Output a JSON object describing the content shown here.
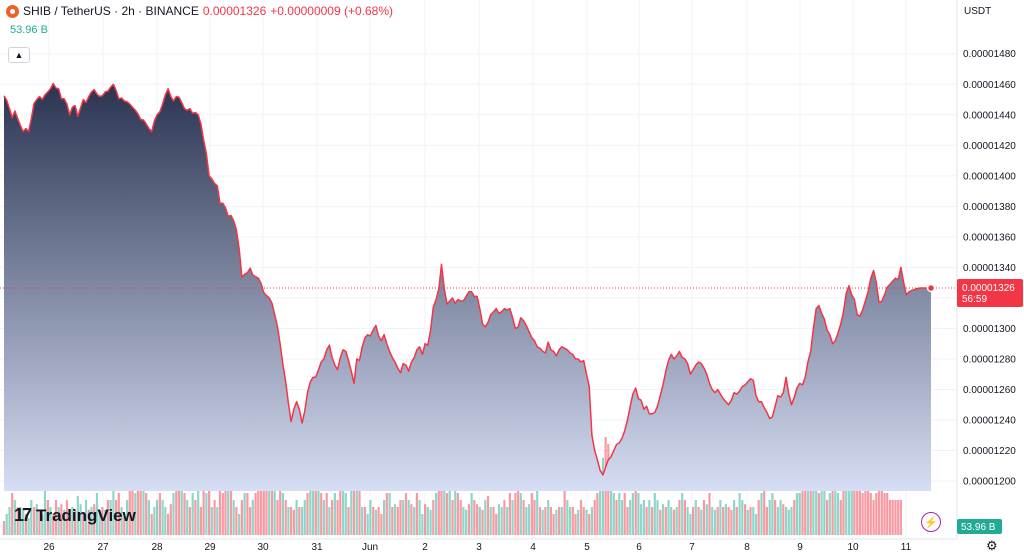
{
  "header": {
    "icon": "shib-coin-icon",
    "symbol": "SHIB / TetherUS · 2h · BINANCE",
    "price": "0.00001326",
    "change": "+0.00000009 (+0.68%)",
    "volume": "53.96 B"
  },
  "axis": {
    "currency": "USDT",
    "current_price": "0.00001326",
    "countdown": "56:59",
    "volume_badge": "53.96 B"
  },
  "logo_text": "TradingView",
  "colors": {
    "line": "#f23645",
    "area_top": "#2a3350",
    "area_bottom": "#d6def5",
    "vol_up": "#22ab94",
    "vol_down": "#f23645",
    "price_label": "#f23645",
    "volume_label": "#22ab94"
  },
  "chart_data": {
    "type": "area",
    "series": [
      {
        "values": [
          1.4525,
          1.4495,
          1.444,
          1.438,
          1.4425,
          1.4375,
          1.433,
          1.429,
          1.431,
          1.429,
          1.4375,
          1.4475,
          1.45,
          1.452,
          1.45,
          1.453,
          1.455,
          1.457,
          1.4605,
          1.4575,
          1.457,
          1.4505,
          1.4505,
          1.447,
          1.44,
          1.445,
          1.446,
          1.439,
          1.4445,
          1.45,
          1.448,
          1.452,
          1.455,
          1.4565,
          1.4535,
          1.452,
          1.4525,
          1.455,
          1.4555,
          1.458,
          1.46,
          1.456,
          1.4505,
          1.451,
          1.449,
          1.4485,
          1.447,
          1.445,
          1.443,
          1.4405,
          1.437,
          1.4365,
          1.434,
          1.431,
          1.429,
          1.436,
          1.44,
          1.442,
          1.447,
          1.453,
          1.457,
          1.452,
          1.449,
          1.452,
          1.4515,
          1.448,
          1.444,
          1.443,
          1.444,
          1.441,
          1.4415,
          1.44,
          1.434,
          1.4235,
          1.4145,
          1.4,
          1.398,
          1.395,
          1.3935,
          1.382,
          1.382,
          1.379,
          1.3735,
          1.374,
          1.3705,
          1.3645,
          1.352,
          1.3335,
          1.3355,
          1.3365,
          1.3395,
          1.335,
          1.334,
          1.333,
          1.3295,
          1.3235,
          1.3215,
          1.32,
          1.3165,
          1.309,
          1.301,
          1.2895,
          1.2765,
          1.265,
          1.251,
          1.239,
          1.247,
          1.252,
          1.247,
          1.238,
          1.246,
          1.258,
          1.265,
          1.268,
          1.268,
          1.273,
          1.278,
          1.28,
          1.286,
          1.289,
          1.281,
          1.276,
          1.273,
          1.281,
          1.286,
          1.285,
          1.279,
          1.272,
          1.264,
          1.28,
          1.279,
          1.288,
          1.294,
          1.296,
          1.295,
          1.299,
          1.302,
          1.295,
          1.292,
          1.296,
          1.29,
          1.285,
          1.281,
          1.278,
          1.274,
          1.271,
          1.277,
          1.276,
          1.272,
          1.278,
          1.281,
          1.286,
          1.288,
          1.283,
          1.29,
          1.289,
          1.299,
          1.314,
          1.319,
          1.326,
          1.342,
          1.326,
          1.316,
          1.318,
          1.32,
          1.3165,
          1.319,
          1.318,
          1.318,
          1.321,
          1.324,
          1.324,
          1.321,
          1.321,
          1.313,
          1.303,
          1.301,
          1.304,
          1.309,
          1.311,
          1.313,
          1.31,
          1.311,
          1.313,
          1.312,
          1.313,
          1.307,
          1.3,
          1.301,
          1.307,
          1.305,
          1.302,
          1.298,
          1.294,
          1.292,
          1.288,
          1.287,
          1.285,
          1.284,
          1.291,
          1.286,
          1.285,
          1.282,
          1.286,
          1.288,
          1.287,
          1.286,
          1.284,
          1.283,
          1.28,
          1.28,
          1.278,
          1.279,
          1.27,
          1.262,
          1.23,
          1.22,
          1.214,
          1.207,
          1.204,
          1.209,
          1.214,
          1.216,
          1.22,
          1.224,
          1.225,
          1.228,
          1.233,
          1.24,
          1.249,
          1.257,
          1.261,
          1.254,
          1.253,
          1.247,
          1.249,
          1.244,
          1.244,
          1.245,
          1.249,
          1.256,
          1.263,
          1.272,
          1.279,
          1.283,
          1.28,
          1.282,
          1.285,
          1.281,
          1.28,
          1.277,
          1.27,
          1.273,
          1.276,
          1.278,
          1.277,
          1.274,
          1.27,
          1.264,
          1.26,
          1.258,
          1.26,
          1.257,
          1.254,
          1.252,
          1.25,
          1.253,
          1.258,
          1.257,
          1.259,
          1.262,
          1.263,
          1.265,
          1.267,
          1.266,
          1.256,
          1.252,
          1.252,
          1.248,
          1.245,
          1.241,
          1.242,
          1.249,
          1.256,
          1.255,
          1.258,
          1.268,
          1.257,
          1.25,
          1.255,
          1.261,
          1.264,
          1.263,
          1.268,
          1.278,
          1.285,
          1.3,
          1.313,
          1.315,
          1.31,
          1.306,
          1.299,
          1.296,
          1.29,
          1.292,
          1.297,
          1.303,
          1.311,
          1.323,
          1.328,
          1.322,
          1.319,
          1.309,
          1.308,
          1.312,
          1.318,
          1.324,
          1.333,
          1.338,
          1.33,
          1.317,
          1.318,
          1.322,
          1.327,
          1.329,
          1.331,
          1.333,
          1.332,
          1.34,
          1.33,
          1.322,
          1.324,
          1.325,
          1.3255,
          1.3262,
          1.3265,
          1.3265,
          1.3265,
          1.3265,
          1.3265
        ]
      }
    ],
    "x_labels": [
      "26",
      "27",
      "28",
      "29",
      "30",
      "31",
      "Jun",
      "2",
      "3",
      "4",
      "5",
      "6",
      "7",
      "8",
      "9",
      "10",
      "11"
    ],
    "y_ticks": [
      "0.00001200",
      "0.00001220",
      "0.00001240",
      "0.00001260",
      "0.00001280",
      "0.00001300",
      "0.00001320",
      "0.00001340",
      "0.00001360",
      "0.00001380",
      "0.00001400",
      "0.00001420",
      "0.00001440",
      "0.00001460",
      "0.00001480"
    ],
    "ylim": [
      1.1935,
      1.489
    ],
    "volume": [
      0.1,
      0.15,
      0.2,
      0.3,
      0.25,
      0.2,
      0.2,
      0.18,
      0.15,
      0.12,
      0.25,
      0.2,
      0.22,
      0.18,
      0.15,
      0.35,
      0.25,
      0.2,
      0.15,
      0.25,
      0.2,
      0.22,
      0.18,
      0.25,
      0.15,
      0.2,
      0.18,
      0.28,
      0.22,
      0.15,
      0.25,
      0.18,
      0.2,
      0.22,
      0.3,
      0.15,
      0.2,
      0.18,
      0.25,
      0.25,
      0.35,
      0.25,
      0.3,
      0.2,
      0.15,
      0.25,
      0.4,
      0.35,
      0.3,
      0.5,
      0.6,
      0.45,
      0.3,
      0.25,
      0.15,
      0.2,
      0.25,
      0.3,
      0.25,
      0.2,
      0.15,
      0.22,
      0.3,
      0.55,
      0.7,
      0.4,
      0.3,
      0.25,
      0.2,
      0.3,
      0.25,
      0.35,
      0.2,
      0.4,
      0.3,
      0.35,
      0.2,
      0.25,
      0.2,
      0.35,
      0.3,
      0.5,
      0.4,
      0.9,
      0.25,
      0.2,
      0.15,
      0.25,
      0.3,
      0.3,
      0.2,
      0.25,
      0.3,
      0.5,
      0.7,
      1.0,
      0.6,
      0.5,
      0.4,
      0.35,
      0.25,
      0.35,
      0.3,
      0.25,
      0.2,
      0.2,
      0.18,
      0.25,
      0.2,
      0.2,
      0.25,
      0.3,
      0.45,
      0.4,
      0.35,
      0.5,
      0.3,
      0.25,
      0.3,
      0.2,
      0.25,
      0.3,
      0.25,
      0.4,
      0.5,
      0.3,
      0.2,
      0.45,
      0.35,
      0.5,
      0.8,
      0.2,
      0.2,
      0.15,
      0.25,
      0.2,
      0.18,
      0.2,
      0.15,
      0.25,
      0.3,
      0.3,
      0.2,
      0.22,
      0.2,
      0.25,
      0.25,
      0.3,
      0.25,
      0.22,
      0.2,
      0.3,
      0.25,
      0.15,
      0.22,
      0.2,
      0.18,
      0.25,
      0.3,
      0.4,
      0.35,
      0.4,
      0.3,
      0.35,
      0.25,
      0.4,
      0.3,
      0.25,
      0.2,
      0.18,
      0.22,
      0.3,
      0.25,
      0.22,
      0.2,
      0.18,
      0.25,
      0.28,
      0.2,
      0.2,
      0.15,
      0.22,
      0.2,
      0.25,
      0.2,
      0.3,
      0.25,
      0.3,
      0.35,
      0.3,
      0.25,
      0.2,
      0.22,
      0.3,
      0.25,
      0.35,
      0.2,
      0.18,
      0.2,
      0.25,
      0.2,
      0.15,
      0.18,
      0.2,
      0.2,
      0.35,
      0.25,
      0.2,
      0.2,
      0.15,
      0.18,
      0.25,
      0.2,
      0.18,
      0.15,
      0.2,
      0.25,
      0.3,
      0.4,
      0.55,
      0.7,
      0.65,
      0.4,
      0.3,
      0.25,
      0.3,
      0.25,
      0.3,
      0.2,
      0.25,
      0.3,
      0.35,
      0.3,
      0.22,
      0.25,
      0.2,
      0.25,
      0.2,
      0.3,
      0.25,
      0.18,
      0.22,
      0.2,
      0.25,
      0.2,
      0.18,
      0.2,
      0.25,
      0.3,
      0.25,
      0.2,
      0.15,
      0.2,
      0.25,
      0.2,
      0.18,
      0.25,
      0.22,
      0.3,
      0.2,
      0.18,
      0.2,
      0.25,
      0.2,
      0.22,
      0.2,
      0.18,
      0.25,
      0.2,
      0.3,
      0.25,
      0.22,
      0.18,
      0.2,
      0.2,
      0.15,
      0.25,
      0.3,
      0.35,
      0.2,
      0.25,
      0.3,
      0.25,
      0.2,
      0.25,
      0.22,
      0.2,
      0.18,
      0.2,
      0.25,
      0.3,
      0.3,
      0.45,
      0.4,
      0.55,
      0.5,
      0.4,
      0.35,
      0.3,
      0.35,
      0.4,
      0.25,
      0.3,
      0.35,
      0.4,
      0.3,
      0.25,
      0.45,
      0.35,
      0.5,
      0.7,
      0.6,
      0.4,
      0.35,
      0.3,
      0.4,
      0.35,
      0.3,
      0.25,
      0.3,
      0.45,
      0.35,
      0.3,
      0.3,
      0.25,
      0.25,
      0.25,
      0.25,
      0.25
    ],
    "volume_up": [
      false,
      true,
      true,
      false,
      true,
      false,
      true,
      true,
      false,
      true,
      true,
      false,
      true,
      false,
      true,
      true,
      false,
      true,
      false,
      false,
      true,
      false,
      true,
      false,
      false,
      true,
      false,
      true,
      true,
      false,
      true,
      false,
      true,
      false,
      true,
      true,
      false,
      true,
      false,
      true,
      true,
      false,
      false,
      true,
      false,
      true,
      false,
      false,
      true,
      false,
      false,
      true,
      false,
      true,
      false,
      true,
      true,
      false,
      true,
      true,
      false,
      false,
      true,
      false,
      false,
      true,
      false,
      true,
      false,
      true,
      false,
      true,
      false,
      false,
      true,
      false,
      true,
      false,
      true,
      false,
      false,
      false,
      true,
      false,
      true,
      false,
      true,
      false,
      true,
      false,
      false,
      true,
      false,
      false,
      false,
      false,
      false,
      true,
      false,
      true,
      false,
      false,
      true,
      false,
      true,
      false,
      false,
      true,
      false,
      true,
      true,
      false,
      true,
      true,
      false,
      true,
      false,
      true,
      false,
      true,
      false,
      true,
      false,
      false,
      true,
      true,
      false,
      true,
      false,
      true,
      false,
      true,
      false,
      true,
      true,
      false,
      true,
      false,
      false,
      true,
      false,
      true,
      false,
      true,
      false,
      false,
      true,
      false,
      true,
      false,
      true,
      false,
      true,
      true,
      false,
      true,
      true,
      false,
      true,
      false,
      false,
      true,
      false,
      true,
      false,
      true,
      false,
      false,
      true,
      true,
      false,
      true,
      false,
      false,
      true,
      false,
      true,
      false,
      true,
      false,
      false,
      true,
      true,
      false,
      true,
      false,
      true,
      false,
      false,
      true,
      false,
      true,
      true,
      false,
      false,
      true,
      false,
      true,
      false,
      true,
      false,
      false,
      true,
      false,
      true,
      false,
      true,
      true,
      false,
      false,
      true,
      false,
      false,
      true,
      false,
      true,
      false,
      false,
      true,
      true,
      false,
      false,
      true,
      true,
      false,
      true,
      true,
      false,
      false,
      true,
      true,
      false,
      true,
      true,
      true,
      false,
      true,
      false,
      true,
      true,
      false,
      true,
      false,
      true,
      true,
      false,
      true,
      false,
      true,
      false,
      true,
      true,
      false,
      true,
      false,
      true,
      false,
      true,
      false,
      true,
      true,
      false,
      true,
      false,
      true,
      false,
      false,
      true,
      false,
      true,
      true,
      false,
      true,
      false,
      true,
      true,
      false,
      true,
      false,
      false,
      true,
      true,
      false,
      true,
      true,
      false,
      true,
      true,
      true,
      false,
      true,
      true,
      false,
      false,
      true,
      false,
      true,
      true,
      false,
      true,
      true,
      false,
      true,
      false,
      true,
      true,
      false,
      false,
      true,
      true,
      true
    ]
  }
}
